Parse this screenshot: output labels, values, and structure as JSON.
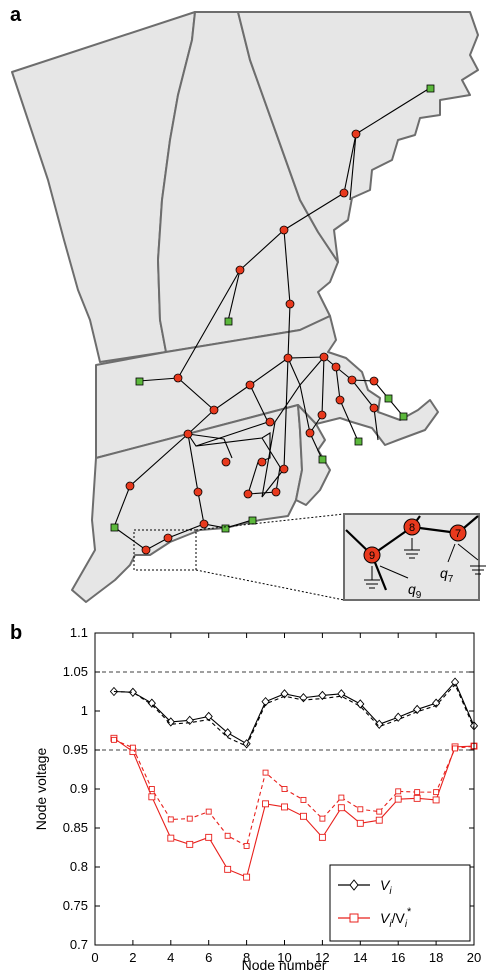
{
  "panel_a": {
    "letter": "a",
    "inset": {
      "node_labels": [
        "9",
        "8",
        "7"
      ],
      "q_labels": [
        "q",
        "q"
      ],
      "q_subs": [
        "9",
        "7"
      ]
    },
    "colors": {
      "node": "#e8391d",
      "generator": "#5cb83c",
      "land": "#e6e6e6",
      "border": "#6d6d6d"
    }
  },
  "panel_b": {
    "letter": "b"
  },
  "chart_data": {
    "type": "line",
    "xlabel": "Node number",
    "ylabel": "Node voltage",
    "xlim": [
      0,
      20
    ],
    "ylim": [
      0.7,
      1.1
    ],
    "xticks": [
      "0",
      "2",
      "4",
      "6",
      "8",
      "10",
      "12",
      "14",
      "16",
      "18",
      "20"
    ],
    "yticks": [
      "0.7",
      "0.75",
      "0.8",
      "0.85",
      "0.9",
      "0.95",
      "1",
      "1.05",
      "1.1"
    ],
    "reference_lines": [
      1.05,
      0.95
    ],
    "legend_position": "bottom-right",
    "x": [
      1,
      2,
      3,
      4,
      5,
      6,
      7,
      8,
      9,
      10,
      11,
      12,
      13,
      14,
      15,
      16,
      17,
      18,
      19,
      20
    ],
    "series": [
      {
        "name": "V",
        "subscript": "i",
        "color": "#000000",
        "marker": "diamond",
        "values": [
          1.025,
          1.024,
          1.01,
          0.986,
          0.988,
          0.993,
          0.972,
          0.958,
          1.012,
          1.022,
          1.017,
          1.02,
          1.022,
          1.009,
          0.983,
          0.992,
          1.002,
          1.01,
          1.037,
          0.981
        ]
      },
      {
        "name": "V",
        "subscript": "i",
        "color": "#000000",
        "marker": "none",
        "dashed": true,
        "values": [
          1.025,
          1.024,
          1.008,
          0.983,
          0.985,
          0.989,
          0.966,
          0.955,
          1.009,
          1.019,
          1.014,
          1.016,
          1.019,
          1.006,
          0.98,
          0.989,
          0.999,
          1.007,
          1.034,
          0.978
        ]
      },
      {
        "name": "V",
        "subscript": "i",
        "suffix": "/V",
        "suffix_sub": "i",
        "suffix_sup": "*",
        "color": "#e8201c",
        "marker": "square",
        "values": [
          0.965,
          0.948,
          0.89,
          0.837,
          0.829,
          0.838,
          0.797,
          0.787,
          0.881,
          0.877,
          0.865,
          0.838,
          0.876,
          0.856,
          0.86,
          0.887,
          0.888,
          0.886,
          0.954,
          0.955
        ]
      },
      {
        "name": "V",
        "subscript": "i",
        "color": "#e8201c",
        "marker": "square",
        "dashed": true,
        "values": [
          0.963,
          0.953,
          0.9,
          0.861,
          0.862,
          0.871,
          0.84,
          0.827,
          0.921,
          0.9,
          0.886,
          0.862,
          0.889,
          0.874,
          0.871,
          0.897,
          0.896,
          0.896,
          0.952,
          0.955
        ]
      }
    ]
  }
}
